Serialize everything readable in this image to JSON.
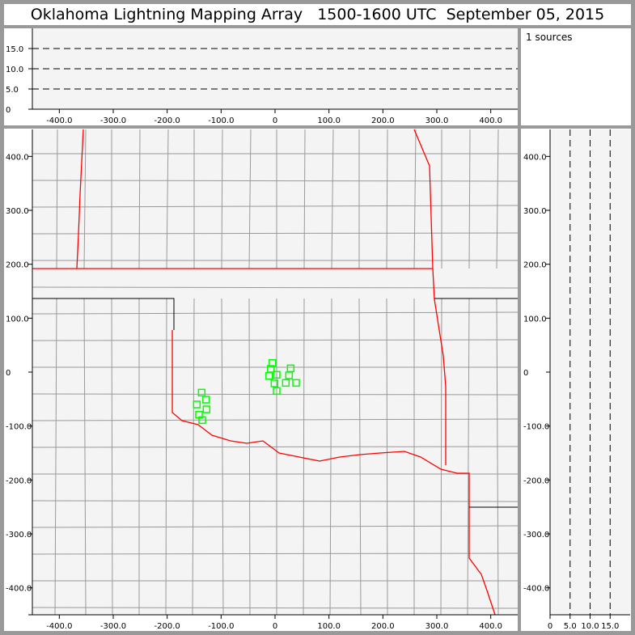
{
  "title": "Oklahoma Lightning Mapping Array   1500-1600 UTC  September 05, 2015",
  "sources_label": "1 sources",
  "colors": {
    "panel_bg": "#f4f4f4",
    "frame": "#999999",
    "state_border": "#ff0000",
    "county": "#999999",
    "station": "#00ff00"
  },
  "chart_data": [
    {
      "type": "line",
      "panel": "altitude-vs-east-west",
      "xlim": [
        -450,
        450
      ],
      "ylim": [
        0,
        20
      ],
      "xticks": [
        "-400.0",
        "-300.0",
        "-200.0",
        "-100.0",
        "0",
        "100.0",
        "200.0",
        "300.0",
        "400.0"
      ],
      "yticks": [
        "0",
        "5.0",
        "10.0",
        "15.0"
      ],
      "dashed_grid": [
        5,
        10,
        15
      ]
    },
    {
      "type": "scatter",
      "panel": "plan-view-map",
      "xlim": [
        -450,
        450
      ],
      "ylim": [
        -450,
        450
      ],
      "xticks": [
        "-400.0",
        "-300.0",
        "-200.0",
        "-100.0",
        "0",
        "100.0",
        "200.0",
        "300.0",
        "400.0"
      ],
      "yticks": [
        "-400.0",
        "-300.0",
        "-200.0",
        "-100.0",
        "0",
        "100.0",
        "200.0",
        "300.0",
        "400.0"
      ],
      "stations": [
        [
          -5,
          17
        ],
        [
          -8,
          6
        ],
        [
          -11,
          -7
        ],
        [
          3,
          -5
        ],
        [
          29,
          7
        ],
        [
          26,
          -6
        ],
        [
          -1,
          -21
        ],
        [
          20,
          -20
        ],
        [
          39,
          -20
        ],
        [
          3,
          -35
        ],
        [
          -136,
          -38
        ],
        [
          -128,
          -51
        ],
        [
          -145,
          -60
        ],
        [
          -127,
          -69
        ],
        [
          -141,
          -79
        ],
        [
          -135,
          -89
        ]
      ]
    },
    {
      "type": "line",
      "panel": "north-south-vs-altitude",
      "xlim": [
        0,
        20
      ],
      "ylim": [
        -450,
        450
      ],
      "xticks": [
        "0",
        "5.0",
        "10.0",
        "15.0"
      ],
      "yticks": [
        "-400.0",
        "-300.0",
        "-200.0",
        "-100.0",
        "0",
        "100.0",
        "200.0",
        "300.0",
        "400.0"
      ],
      "dashed_grid": [
        5,
        10,
        15
      ]
    }
  ]
}
